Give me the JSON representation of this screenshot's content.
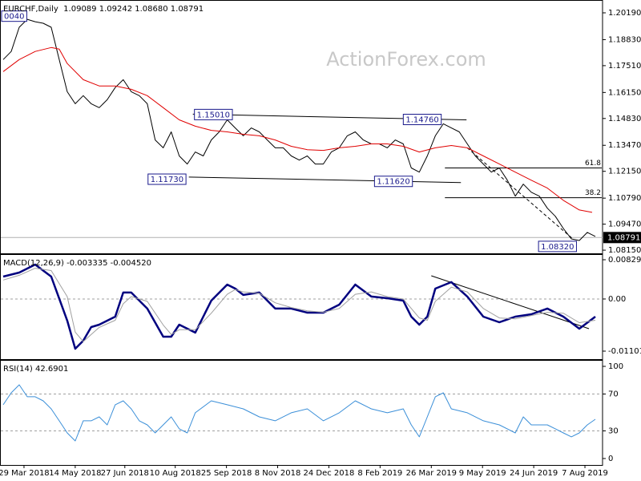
{
  "chart_data": [
    {
      "type": "line",
      "title": "EURCHF,Daily  1.09089 1.09242 1.08680 1.08791",
      "watermark": "ActionForex.com",
      "xlim": [
        -1.5,
        374.5
      ],
      "ylim": [
        1.0799,
        1.208
      ],
      "yticks": [
        {
          "value": 1.2019,
          "label": "1.20190"
        },
        {
          "value": 1.1883,
          "label": "1.18830"
        },
        {
          "value": 1.1751,
          "label": "1.17510"
        },
        {
          "value": 1.1615,
          "label": "1.16150"
        },
        {
          "value": 1.1483,
          "label": "1.14830"
        },
        {
          "value": 1.1347,
          "label": "1.13470"
        },
        {
          "value": 1.1215,
          "label": "1.12150"
        },
        {
          "value": 1.1079,
          "label": "1.10790"
        },
        {
          "value": 1.0947,
          "label": "1.09470"
        },
        {
          "value": 1.0815,
          "label": "1.08150"
        }
      ],
      "last_price": 1.08791,
      "series": [
        {
          "color": "#000000",
          "x": [
            0,
            5,
            10,
            15,
            20,
            25,
            30,
            35,
            40,
            45,
            50,
            55,
            60,
            65,
            70,
            75,
            80,
            85,
            90,
            95,
            100,
            105,
            110,
            115,
            120,
            125,
            130,
            135,
            140,
            145,
            150,
            155,
            160,
            165,
            170,
            175,
            180,
            185,
            190,
            195,
            200,
            205,
            210,
            215,
            220,
            225,
            230,
            235,
            240,
            245,
            250,
            255,
            260,
            265,
            270,
            275,
            280,
            285,
            290,
            295,
            300,
            305,
            310,
            315,
            320,
            325,
            330,
            335,
            340,
            345,
            350,
            355,
            360,
            365,
            370
          ],
          "values": [
            1.1782,
            1.1823,
            1.1946,
            1.1986,
            1.1974,
            1.1966,
            1.1946,
            1.1782,
            1.1619,
            1.1558,
            1.1599,
            1.1558,
            1.1538,
            1.1578,
            1.164,
            1.168,
            1.1619,
            1.1599,
            1.1558,
            1.1374,
            1.1334,
            1.1415,
            1.1293,
            1.1252,
            1.1313,
            1.1293,
            1.1374,
            1.1415,
            1.1476,
            1.1435,
            1.1395,
            1.1435,
            1.1415,
            1.1374,
            1.1334,
            1.1334,
            1.1293,
            1.1272,
            1.1293,
            1.1252,
            1.1252,
            1.1313,
            1.1334,
            1.1395,
            1.1415,
            1.1374,
            1.1354,
            1.1354,
            1.1334,
            1.1374,
            1.1354,
            1.1232,
            1.1211,
            1.1293,
            1.1395,
            1.1456,
            1.1435,
            1.1415,
            1.1354,
            1.1293,
            1.1252,
            1.1211,
            1.1232,
            1.117,
            1.1089,
            1.115,
            1.1109,
            1.1089,
            1.1028,
            1.0987,
            1.0925,
            1.0872,
            1.0864,
            1.0905,
            1.0885
          ]
        },
        {
          "color": "#e00000",
          "x": [
            0,
            10,
            20,
            30,
            35,
            40,
            50,
            60,
            70,
            80,
            90,
            100,
            110,
            120,
            130,
            140,
            150,
            160,
            170,
            180,
            190,
            200,
            210,
            220,
            230,
            240,
            250,
            260,
            270,
            280,
            290,
            300,
            310,
            320,
            330,
            340,
            350,
            360,
            368
          ],
          "values": [
            1.1721,
            1.1782,
            1.1823,
            1.1843,
            1.1835,
            1.1762,
            1.168,
            1.1648,
            1.1648,
            1.1631,
            1.1599,
            1.1538,
            1.1476,
            1.1444,
            1.1423,
            1.1415,
            1.1403,
            1.1395,
            1.1374,
            1.1342,
            1.1325,
            1.1321,
            1.1334,
            1.1342,
            1.1354,
            1.1354,
            1.1342,
            1.1313,
            1.1334,
            1.1346,
            1.1334,
            1.1293,
            1.1252,
            1.1211,
            1.117,
            1.113,
            1.1068,
            1.1019,
            1.1007
          ]
        }
      ],
      "trendlines": [
        {
          "x": [
            118.5,
            289.5
          ],
          "y": [
            1.1505,
            1.1476
          ],
          "dashed": false
        },
        {
          "x": [
            116,
            286
          ],
          "y": [
            1.1186,
            1.1158
          ],
          "dashed": false
        },
        {
          "x": [
            290,
            356
          ],
          "y": [
            1.1334,
            1.0872
          ],
          "dashed": true
        }
      ],
      "fib_levels": [
        {
          "label": "61.8",
          "value": 1.1232,
          "x": [
            276,
            374
          ]
        },
        {
          "label": "38.2",
          "value": 1.1081,
          "x": [
            276,
            374
          ]
        }
      ],
      "annotations": [
        {
          "label": "0040",
          "x": -1,
          "y": 1.2
        },
        {
          "label": "1.15010",
          "x": 119.5,
          "y": 1.1501
        },
        {
          "label": "1.14760",
          "x": 250,
          "y": 1.1476
        },
        {
          "label": "1.11730",
          "x": 90.5,
          "y": 1.1173
        },
        {
          "label": "1.11620",
          "x": 232,
          "y": 1.1162
        },
        {
          "label": "1.08320",
          "x": 334.5,
          "y": 1.0832
        }
      ]
    },
    {
      "type": "line",
      "title": "MACD(12,26,9) -0.003335 -0.004520",
      "xlim": [
        -1.5,
        374.5
      ],
      "ylim": [
        -0.012709,
        0.009308
      ],
      "yticks": [
        0.008292,
        {
          "value": 0,
          "label": "0.00"
        },
        -0.011015
      ],
      "levels": [
        0
      ],
      "series": [
        {
          "color": "#00007f",
          "width": 2.5,
          "x": [
            0,
            10,
            20,
            30,
            40,
            45,
            50,
            55,
            60,
            70,
            75,
            80,
            90,
            100,
            105,
            110,
            120,
            130,
            140,
            145,
            150,
            160,
            170,
            180,
            190,
            200,
            210,
            220,
            230,
            240,
            250,
            255,
            260,
            265,
            270,
            280,
            290,
            300,
            310,
            320,
            330,
            340,
            350,
            360,
            370
          ],
          "values": [
            0.00474,
            0.00559,
            0.00728,
            0.00474,
            -0.00457,
            -0.0105,
            -0.00881,
            -0.00593,
            -0.00542,
            -0.00373,
            0.00136,
            0.00136,
            -0.00203,
            -0.00796,
            -0.00796,
            -0.00542,
            -0.00711,
            -0.00034,
            0.00305,
            0.0022,
            0.00085,
            0.00136,
            -0.00203,
            -0.00203,
            -0.00288,
            -0.00288,
            -0.00119,
            0.00305,
            0.00051,
            0.00017,
            -0.00034,
            -0.00373,
            -0.00542,
            -0.00373,
            0.0022,
            0.00356,
            0.00051,
            -0.00373,
            -0.00491,
            -0.00373,
            -0.00322,
            -0.00203,
            -0.00373,
            -0.00627,
            -0.00373
          ]
        },
        {
          "color": "#a0a0a0",
          "width": 1,
          "x": [
            0,
            10,
            20,
            30,
            40,
            45,
            50,
            55,
            60,
            70,
            75,
            80,
            90,
            100,
            105,
            110,
            120,
            130,
            140,
            145,
            150,
            160,
            170,
            180,
            190,
            200,
            210,
            220,
            230,
            240,
            250,
            255,
            260,
            265,
            270,
            280,
            290,
            300,
            310,
            320,
            330,
            340,
            350,
            360,
            370
          ],
          "values": [
            0.004,
            0.005,
            0.0065,
            0.006,
            0.0005,
            -0.007,
            -0.009,
            -0.0075,
            -0.006,
            -0.0045,
            -0.001,
            0.0005,
            -0.0005,
            -0.0055,
            -0.0075,
            -0.0065,
            -0.0065,
            -0.003,
            0.001,
            0.002,
            0.0015,
            0.0012,
            -0.0008,
            -0.0018,
            -0.0025,
            -0.0028,
            -0.002,
            0.001,
            0.0015,
            0.0005,
            0,
            -0.002,
            -0.004,
            -0.0045,
            -0.0005,
            0.0025,
            0.0015,
            -0.002,
            -0.004,
            -0.0042,
            -0.0035,
            -0.0028,
            -0.003,
            -0.005,
            -0.0045
          ]
        }
      ],
      "trendlines": [
        {
          "x": [
            267.5,
            366
          ],
          "y": [
            0.00491,
            -0.00627
          ],
          "dashed": false
        }
      ]
    },
    {
      "type": "line",
      "title": "RSI(14) 42.6901",
      "xlim": [
        -1.5,
        374.5
      ],
      "ylim": [
        -7,
        106.1
      ],
      "yticks": [
        100,
        70,
        30,
        0
      ],
      "levels": [
        70,
        30
      ],
      "series": [
        {
          "color": "#3b8fd8",
          "width": 1,
          "x": [
            0,
            5,
            10,
            15,
            20,
            25,
            30,
            35,
            40,
            45,
            50,
            55,
            60,
            65,
            70,
            75,
            80,
            85,
            90,
            95,
            100,
            105,
            110,
            115,
            120,
            130,
            140,
            150,
            160,
            170,
            180,
            190,
            200,
            210,
            220,
            230,
            240,
            250,
            255,
            260,
            265,
            270,
            275,
            280,
            290,
            300,
            310,
            320,
            325,
            330,
            340,
            345,
            350,
            355,
            360,
            365,
            370
          ],
          "values": [
            58.3,
            71.3,
            80,
            67,
            67,
            62.6,
            53.9,
            40.9,
            27.8,
            19.1,
            40.9,
            40.9,
            45.2,
            36.5,
            58.3,
            62.6,
            53.9,
            40.9,
            36.5,
            27.8,
            36.5,
            45.2,
            32.2,
            27.8,
            49.6,
            62.6,
            58.3,
            53.9,
            45.2,
            40.9,
            49.6,
            53.9,
            40.9,
            49.6,
            62.6,
            53.9,
            49.6,
            53.9,
            36.5,
            23.5,
            45.2,
            67,
            71.3,
            53.9,
            49.6,
            40.9,
            36.5,
            27.8,
            45.2,
            36.5,
            36.5,
            32.2,
            27.8,
            23.5,
            27.8,
            36.5,
            42.6
          ]
        }
      ],
      "xticks": [
        {
          "value": 13,
          "label": "29 Mar 2018"
        },
        {
          "value": 45,
          "label": "14 May 2018"
        },
        {
          "value": 76,
          "label": "27 Jun 2018"
        },
        {
          "value": 107.5,
          "label": "10 Aug 2018"
        },
        {
          "value": 139.5,
          "label": "25 Sep 2018"
        },
        {
          "value": 171.5,
          "label": "8 Nov 2018"
        },
        {
          "value": 203.5,
          "label": "24 Dec 2018"
        },
        {
          "value": 235.5,
          "label": "8 Feb 2019"
        },
        {
          "value": 267.5,
          "label": "26 Mar 2019"
        },
        {
          "value": 299.5,
          "label": "9 May 2019"
        },
        {
          "value": 331.5,
          "label": "24 Jun 2019"
        },
        {
          "value": 363.5,
          "label": "7 Aug 2019"
        }
      ]
    }
  ]
}
